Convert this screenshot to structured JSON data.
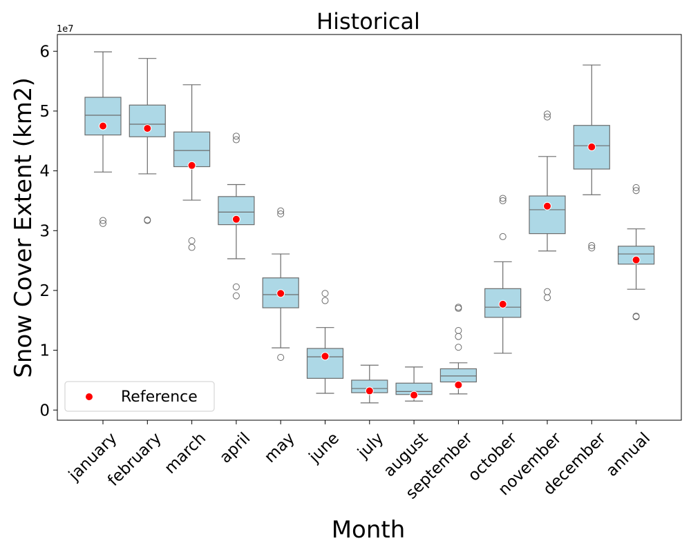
{
  "chart_data": {
    "type": "box",
    "title": "Historical",
    "xlabel": "Month",
    "ylabel": "Snow Cover Extent (km2)",
    "y_offset_label": "1e7",
    "y_scale_multiplier": 10000000,
    "ylim": [
      -0.17,
      6.28
    ],
    "yticks": [
      0,
      1,
      2,
      3,
      4,
      5,
      6
    ],
    "grid": false,
    "legend": {
      "position": "lower-left",
      "entries": [
        {
          "label": "Reference",
          "color": "#ff0000",
          "marker": "circle"
        }
      ]
    },
    "colors": {
      "box_fill": "#add8e6",
      "box_edge": "#6b6b6b",
      "reference": "#ff0000"
    },
    "categories": [
      "january",
      "february",
      "march",
      "april",
      "may",
      "june",
      "july",
      "august",
      "september",
      "october",
      "november",
      "december",
      "annual"
    ],
    "boxes": [
      {
        "whislo": 3.98,
        "q1": 4.6,
        "med": 4.93,
        "q3": 5.23,
        "whishi": 5.99,
        "fliers": [
          3.12,
          3.17
        ]
      },
      {
        "whislo": 3.95,
        "q1": 4.57,
        "med": 4.78,
        "q3": 5.1,
        "whishi": 5.88,
        "fliers": [
          3.17,
          3.18
        ]
      },
      {
        "whislo": 3.51,
        "q1": 4.07,
        "med": 4.34,
        "q3": 4.65,
        "whishi": 5.44,
        "fliers": [
          2.72,
          2.83
        ]
      },
      {
        "whislo": 2.53,
        "q1": 3.1,
        "med": 3.31,
        "q3": 3.57,
        "whishi": 3.77,
        "fliers": [
          1.91,
          2.06,
          4.52,
          4.58
        ]
      },
      {
        "whislo": 1.04,
        "q1": 1.71,
        "med": 1.93,
        "q3": 2.21,
        "whishi": 2.61,
        "fliers": [
          0.88,
          3.28,
          3.33
        ]
      },
      {
        "whislo": 0.28,
        "q1": 0.53,
        "med": 0.89,
        "q3": 1.03,
        "whishi": 1.38,
        "fliers": [
          1.83,
          1.95
        ]
      },
      {
        "whislo": 0.12,
        "q1": 0.29,
        "med": 0.36,
        "q3": 0.5,
        "whishi": 0.75,
        "fliers": []
      },
      {
        "whislo": 0.15,
        "q1": 0.26,
        "med": 0.31,
        "q3": 0.45,
        "whishi": 0.72,
        "fliers": []
      },
      {
        "whislo": 0.27,
        "q1": 0.47,
        "med": 0.57,
        "q3": 0.69,
        "whishi": 0.79,
        "fliers": [
          1.05,
          1.23,
          1.33,
          1.7,
          1.72
        ]
      },
      {
        "whislo": 0.95,
        "q1": 1.55,
        "med": 1.72,
        "q3": 2.03,
        "whishi": 2.48,
        "fliers": [
          2.9,
          3.5,
          3.54
        ]
      },
      {
        "whislo": 2.66,
        "q1": 2.95,
        "med": 3.35,
        "q3": 3.58,
        "whishi": 4.24,
        "fliers": [
          1.88,
          1.98,
          4.9,
          4.95
        ]
      },
      {
        "whislo": 3.6,
        "q1": 4.03,
        "med": 4.42,
        "q3": 4.76,
        "whishi": 5.77,
        "fliers": [
          2.71,
          2.75
        ]
      },
      {
        "whislo": 2.02,
        "q1": 2.44,
        "med": 2.61,
        "q3": 2.74,
        "whishi": 3.03,
        "fliers": [
          1.56,
          1.57,
          3.67,
          3.72
        ]
      }
    ],
    "reference": [
      4.75,
      4.71,
      4.09,
      3.19,
      1.95,
      0.9,
      0.32,
      0.25,
      0.42,
      1.77,
      3.41,
      4.4,
      2.51
    ]
  }
}
